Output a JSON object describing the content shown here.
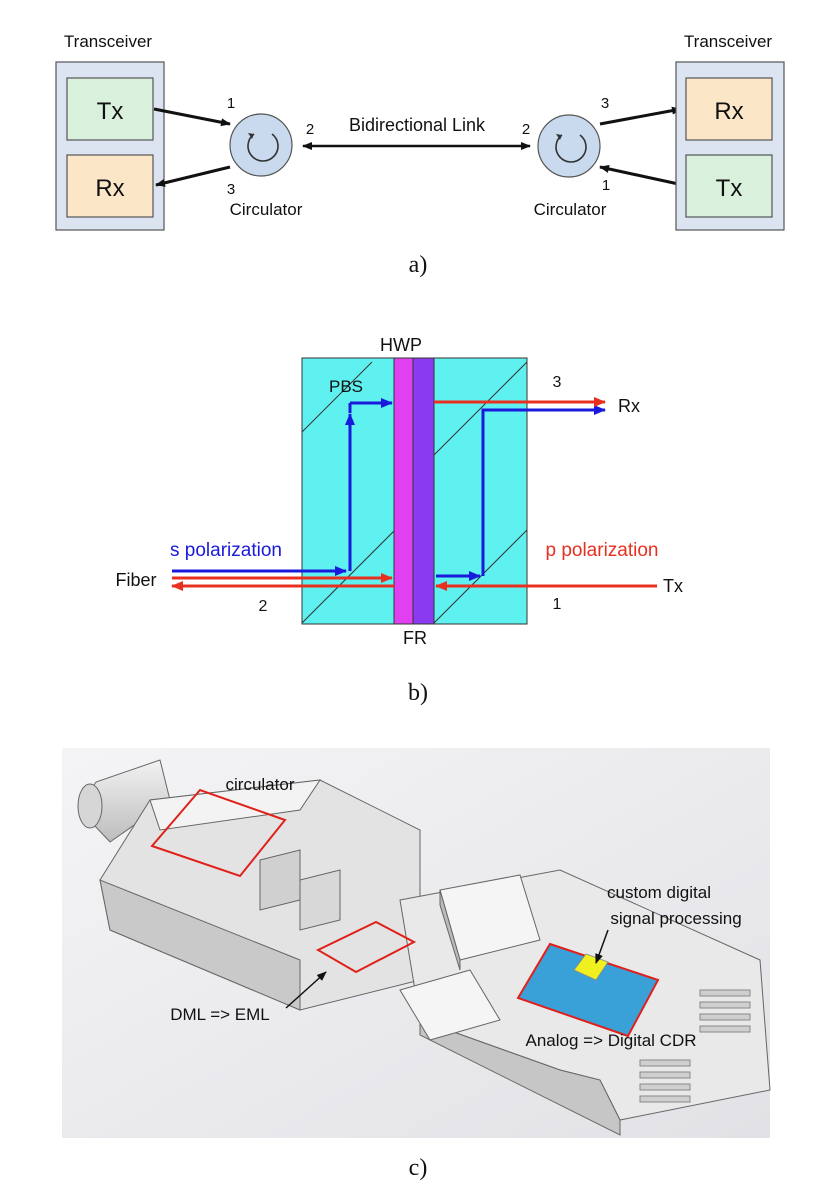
{
  "panel_a": {
    "left_transceiver_title": "Transceiver",
    "right_transceiver_title": "Transceiver",
    "left_tx": "Tx",
    "left_rx": "Rx",
    "right_rx": "Rx",
    "right_tx": "Tx",
    "left_circulator_label": "Circulator",
    "right_circulator_label": "Circulator",
    "link_label": "Bidirectional Link",
    "left_port_1": "1",
    "left_port_2": "2",
    "left_port_3": "3",
    "right_port_1": "1",
    "right_port_2": "2",
    "right_port_3": "3",
    "caption": "a)",
    "colors": {
      "tx_fill": "#d9f0dc",
      "rx_fill": "#fbe7c8",
      "frame_fill": "#dce4f2",
      "circulator_fill": "#c9d9ee"
    }
  },
  "panel_b": {
    "hwp_label": "HWP",
    "fr_label": "FR",
    "pbs_label": "PBS",
    "s_polarization_label": "s polarization",
    "p_polarization_label": "p polarization",
    "fiber_label": "Fiber",
    "rx_label": "Rx",
    "tx_label": "Tx",
    "port_1": "1",
    "port_2": "2",
    "port_3": "3",
    "caption": "b)",
    "colors": {
      "block": "#5ff0f0",
      "hwp": "#e040f0",
      "fr": "#8a3bf0",
      "s_beam": "#1a1adc",
      "p_beam": "#e83020"
    }
  },
  "panel_c": {
    "circulator_label": "circulator",
    "dsp_label_line1": "custom digital",
    "dsp_label_line2": "signal processing",
    "dml_label": "DML => EML",
    "cdr_label": "Analog => Digital CDR",
    "caption": "c)",
    "colors": {
      "highlight": "#e0201a",
      "dsp_chip": "#3aa0d8",
      "dsp_core": "#f0f020"
    }
  }
}
